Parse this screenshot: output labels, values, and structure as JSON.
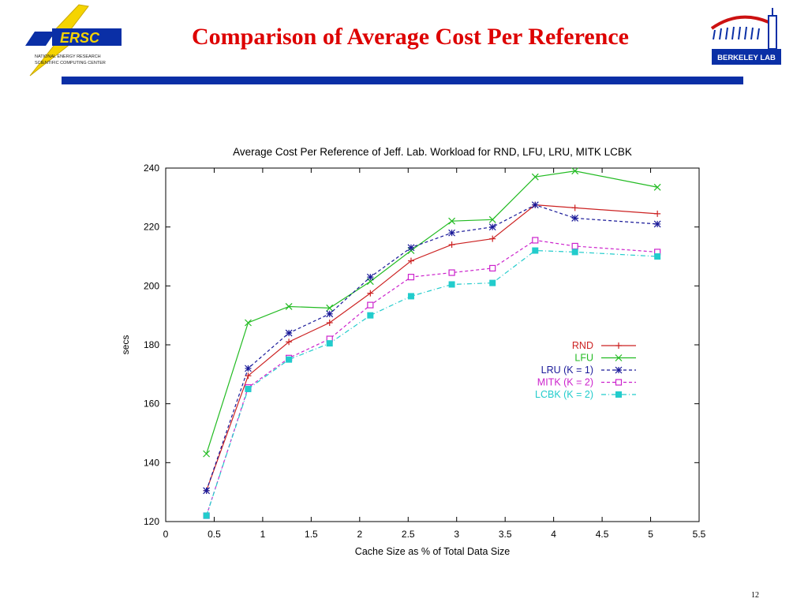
{
  "slide": {
    "title": "Comparison of Average Cost Per Reference",
    "page_number": "12",
    "left_logo": {
      "wordmark": "ERSC",
      "line1": "NATIONAL ENERGY RESEARCH",
      "line2": "SCIENTIFIC COMPUTING CENTER"
    },
    "right_logo": {
      "label": "BERKELEY LAB"
    },
    "accent_color": "#0a2fa6",
    "title_color": "#dd0000"
  },
  "chart_data": {
    "type": "line",
    "title": "Average Cost Per Reference of Jeff. Lab. Workload for RND, LFU, LRU, MITK  LCBK",
    "xlabel": "Cache Size as % of Total Data Size",
    "ylabel": "secs",
    "xlim": [
      0,
      5.5
    ],
    "ylim": [
      120,
      240
    ],
    "xticks": [
      "0",
      "0.5",
      "1",
      "1.5",
      "2",
      "2.5",
      "3",
      "3.5",
      "4",
      "4.5",
      "5",
      "5.5"
    ],
    "yticks": [
      "120",
      "140",
      "160",
      "180",
      "200",
      "220",
      "240"
    ],
    "grid": false,
    "legend_position": "right",
    "x": [
      0.42,
      0.85,
      1.27,
      1.69,
      2.11,
      2.53,
      2.95,
      3.37,
      3.81,
      4.22,
      5.07
    ],
    "series": [
      {
        "name": "RND",
        "color": "#cc2222",
        "marker": "plus",
        "dash": "solid",
        "values": [
          130.5,
          169.5,
          181.0,
          187.5,
          197.5,
          208.5,
          214.0,
          216.0,
          227.5,
          226.5,
          224.5
        ]
      },
      {
        "name": "LFU",
        "color": "#22bb22",
        "marker": "x",
        "dash": "solid",
        "values": [
          143.0,
          187.5,
          193.0,
          192.5,
          201.5,
          212.0,
          222.0,
          222.5,
          237.0,
          239.0,
          233.5
        ]
      },
      {
        "name": "LRU (K = 1)",
        "color": "#1a1a99",
        "marker": "star",
        "dash": "dashed",
        "values": [
          130.5,
          172.0,
          184.0,
          190.5,
          203.0,
          213.0,
          218.0,
          220.0,
          227.5,
          223.0,
          221.0
        ]
      },
      {
        "name": "MITK (K = 2)",
        "color": "#cc22cc",
        "marker": "square-open",
        "dash": "dashed",
        "values": [
          122.0,
          165.5,
          175.5,
          182.0,
          193.5,
          203.0,
          204.5,
          206.0,
          215.5,
          213.5,
          211.5
        ]
      },
      {
        "name": "LCBK (K = 2)",
        "color": "#22cccc",
        "marker": "square-filled",
        "dash": "dashdot",
        "values": [
          122.0,
          165.0,
          175.0,
          180.5,
          190.0,
          196.5,
          200.5,
          201.0,
          212.0,
          211.5,
          210.0
        ]
      }
    ]
  }
}
